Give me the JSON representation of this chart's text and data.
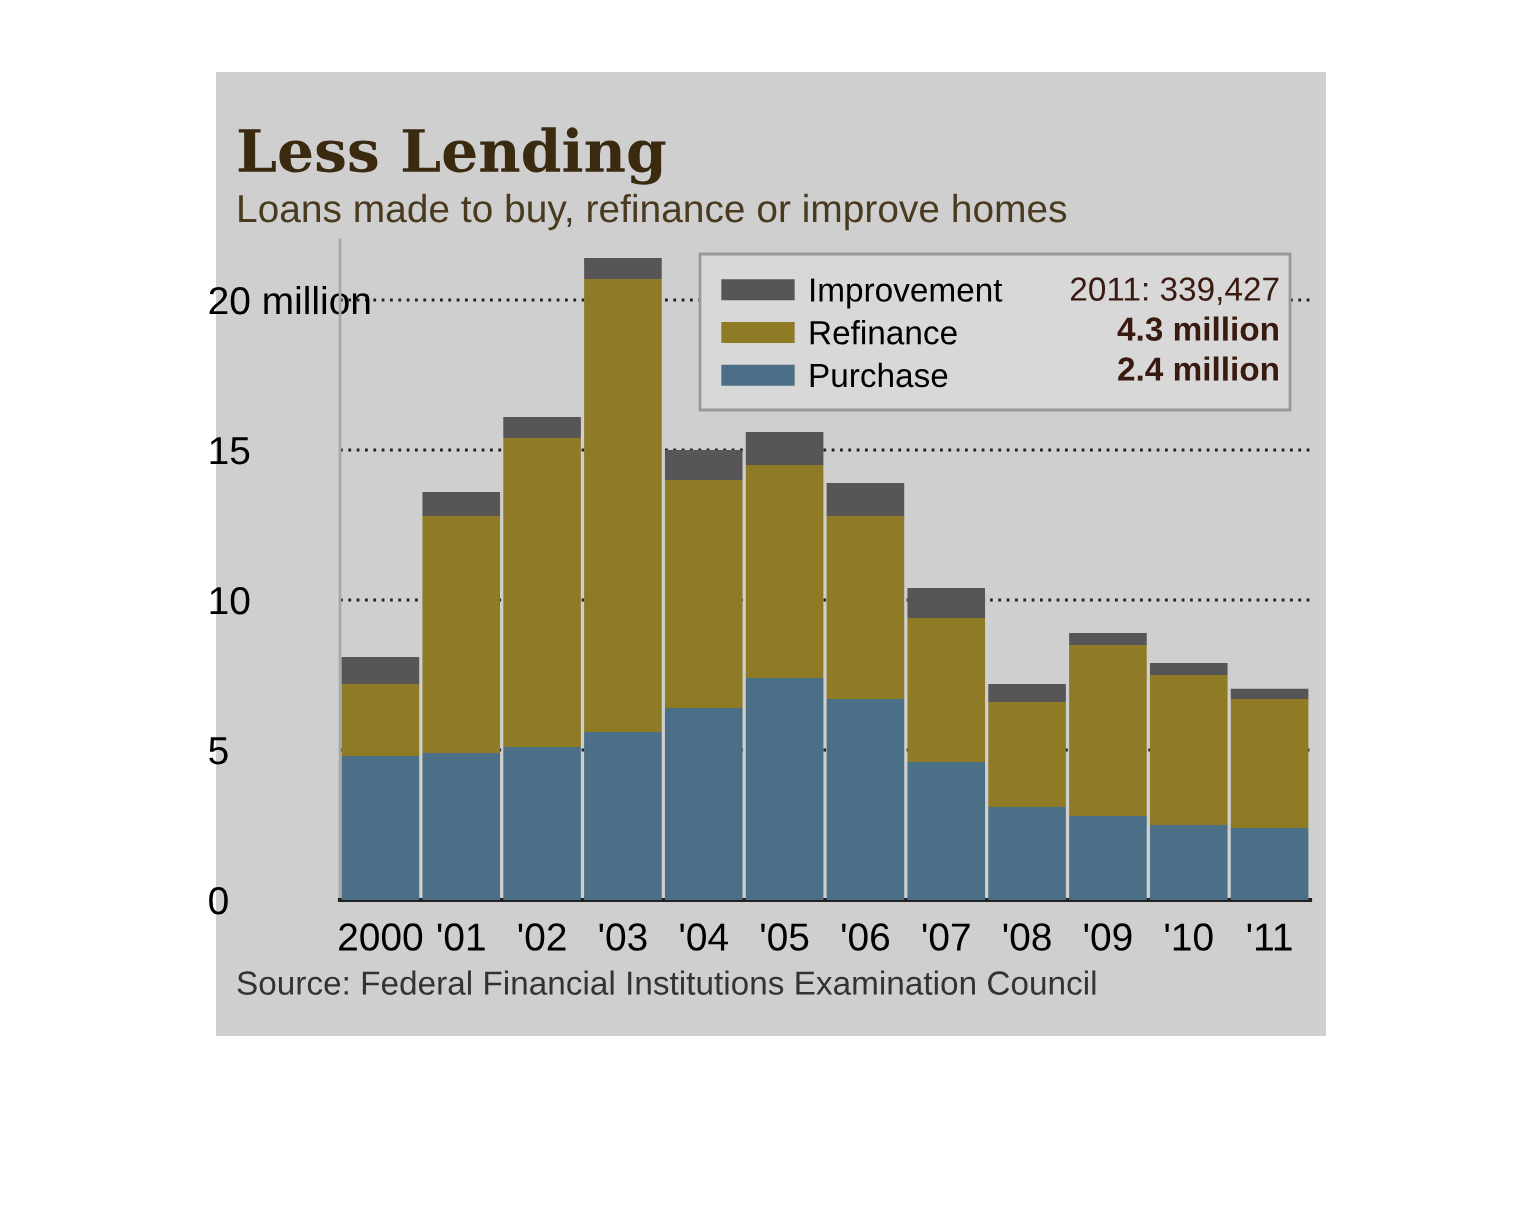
{
  "chart_data": {
    "type": "bar",
    "title": "Less Lending",
    "subtitle": "Loans made to buy, refinance or improve homes",
    "categories": [
      "2000",
      "'01",
      "'02",
      "'03",
      "'04",
      "'05",
      "'06",
      "'07",
      "'08",
      "'09",
      "'10",
      "'11"
    ],
    "stacked": true,
    "series": [
      {
        "name": "Purchase",
        "color": "#4a6f87",
        "values": [
          4.8,
          4.9,
          5.1,
          5.6,
          6.4,
          7.4,
          6.7,
          4.6,
          3.1,
          2.8,
          2.5,
          2.4
        ]
      },
      {
        "name": "Refinance",
        "color": "#8f7a26",
        "values": [
          2.4,
          7.9,
          10.3,
          15.1,
          7.6,
          7.1,
          6.1,
          4.8,
          3.5,
          5.7,
          5.0,
          4.3
        ]
      },
      {
        "name": "Improvement",
        "color": "#575555",
        "values": [
          0.9,
          0.8,
          0.7,
          0.7,
          1.0,
          1.1,
          1.1,
          1.0,
          0.6,
          0.4,
          0.4,
          0.34
        ]
      }
    ],
    "ylim": [
      0,
      22
    ],
    "yticks": [
      0,
      5,
      10,
      15,
      {
        "value": 20,
        "label": "20 million"
      }
    ],
    "grid": "y",
    "legend": "top right",
    "annotations": [
      "2011: 339,427",
      "4.3 million",
      "2.4 million",
      "Source: Federal Financial Institutions Examination Council"
    ]
  }
}
